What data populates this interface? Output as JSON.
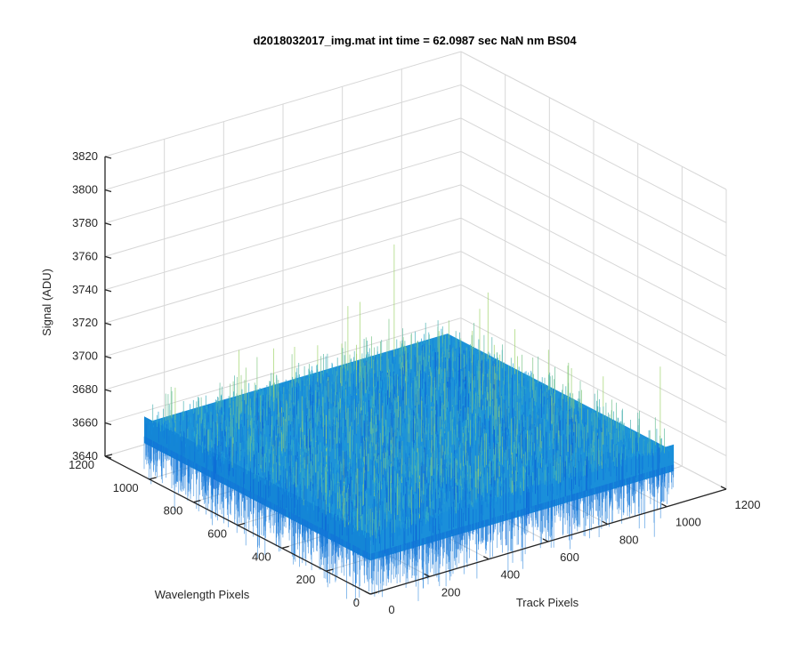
{
  "chart_data": {
    "type": "surface",
    "title": "d2018032017_img.mat int time = 62.0987 sec  NaN nm BS04",
    "xlabel": "Track Pixels",
    "ylabel": "Wavelength Pixels",
    "zlabel": "Signal (ADU)",
    "xlim": [
      0,
      1200
    ],
    "ylim": [
      0,
      1200
    ],
    "zlim": [
      3640,
      3820
    ],
    "xticks": [
      "0",
      "200",
      "400",
      "600",
      "800",
      "1000",
      "1200"
    ],
    "yticks": [
      "0",
      "200",
      "400",
      "600",
      "800",
      "1000",
      "1200"
    ],
    "zticks": [
      "3640",
      "3660",
      "3680",
      "3700",
      "3720",
      "3740",
      "3760",
      "3780",
      "3800",
      "3820"
    ],
    "grid": true,
    "surface": {
      "x_range": [
        1,
        1024
      ],
      "y_range": [
        1,
        1024
      ],
      "mean": 3672,
      "noise_std": 9,
      "colormap": "parula",
      "color_low": "#0a5fd6",
      "color_mid": "#1aa0dc",
      "color_high": "#9fd36a"
    }
  }
}
